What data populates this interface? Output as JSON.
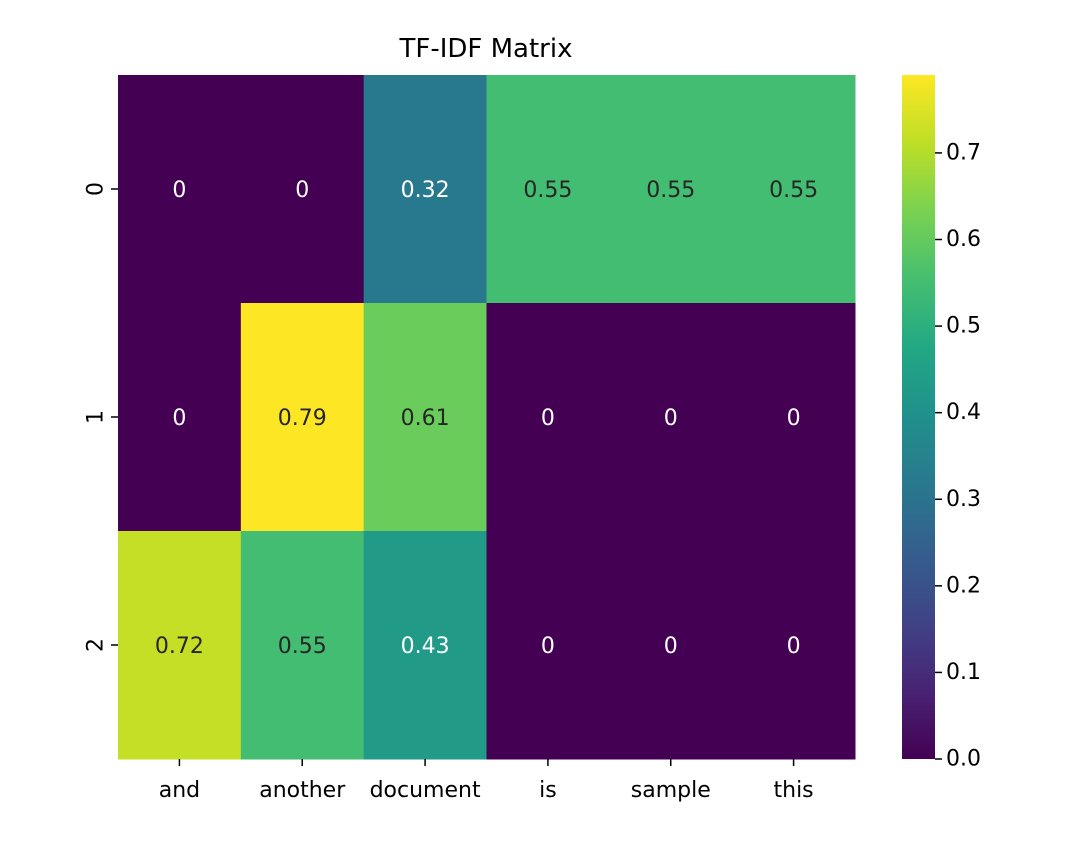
{
  "chart_data": {
    "type": "heatmap",
    "title": "TF-IDF Matrix",
    "xlabel": "",
    "ylabel": "",
    "x_categories": [
      "and",
      "another",
      "document",
      "is",
      "sample",
      "this"
    ],
    "y_categories": [
      "0",
      "1",
      "2"
    ],
    "values": [
      [
        0,
        0,
        0.32,
        0.55,
        0.55,
        0.55
      ],
      [
        0,
        0.79,
        0.61,
        0,
        0,
        0
      ],
      [
        0.72,
        0.55,
        0.43,
        0,
        0,
        0
      ]
    ],
    "annotations": [
      [
        "0",
        "0",
        "0.32",
        "0.55",
        "0.55",
        "0.55"
      ],
      [
        "0",
        "0.79",
        "0.61",
        "0",
        "0",
        "0"
      ],
      [
        "0.72",
        "0.55",
        "0.43",
        "0",
        "0",
        "0"
      ]
    ],
    "colormap": "viridis",
    "colorbar": {
      "range": [
        0,
        0.79
      ],
      "ticks": [
        0.0,
        0.1,
        0.2,
        0.3,
        0.4,
        0.5,
        0.6,
        0.7
      ],
      "tick_labels": [
        "0.0",
        "0.1",
        "0.2",
        "0.3",
        "0.4",
        "0.5",
        "0.6",
        "0.7"
      ]
    },
    "grid": false,
    "legend": "colorbar-right"
  }
}
